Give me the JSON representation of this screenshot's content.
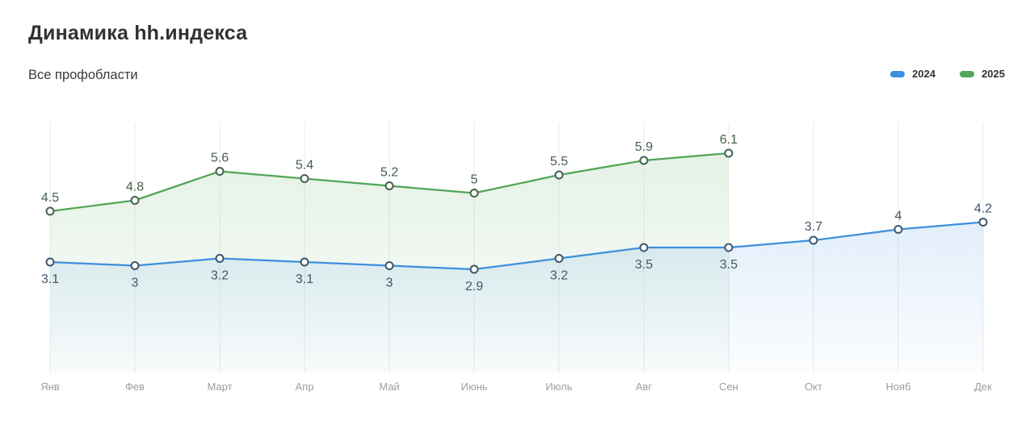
{
  "header": {
    "title": "Динамика hh.индекса",
    "subtitle": "Все профобласти"
  },
  "chart_data": {
    "type": "line",
    "title": "Динамика hh.индекса",
    "subtitle": "Все профобласти",
    "categories": [
      "Янв",
      "Фев",
      "Март",
      "Апр",
      "Май",
      "Июнь",
      "Июль",
      "Авг",
      "Сен",
      "Окт",
      "Нояб",
      "Дек"
    ],
    "series": [
      {
        "name": "2024",
        "color": "#3d8fdd",
        "marker_stroke": "#3c566e",
        "label_color": "#45566b",
        "values": [
          3.1,
          3,
          3.2,
          3.1,
          3,
          2.9,
          3.2,
          3.5,
          3.5,
          3.7,
          4,
          4.2
        ]
      },
      {
        "name": "2025",
        "color": "#50a657",
        "marker_stroke": "#43614d",
        "label_color": "#44604d",
        "values": [
          4.5,
          4.8,
          5.6,
          5.4,
          5.2,
          5,
          5.5,
          5.9,
          6.1,
          null,
          null,
          null
        ]
      }
    ],
    "ylim": [
      0,
      7
    ],
    "grid": "vertical-only",
    "gridline_color": "#ebebeb",
    "axis_label_color": "#9e9e9e",
    "legend_position": "top-right",
    "data_labels": true
  }
}
